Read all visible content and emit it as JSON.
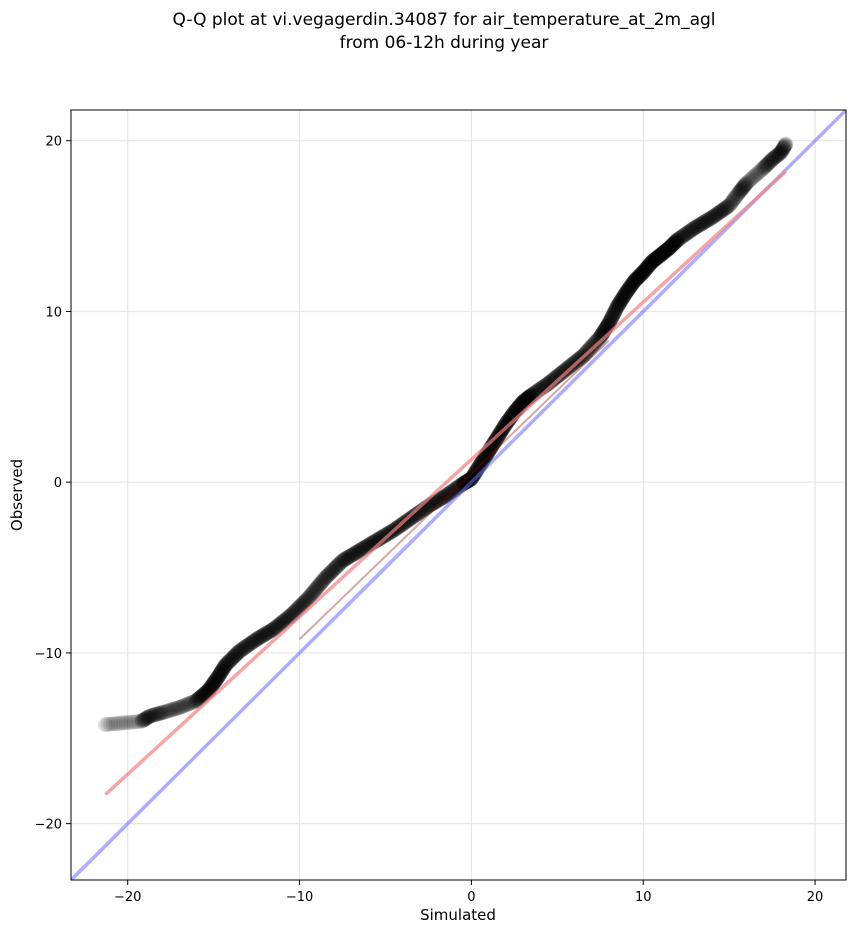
{
  "chart_data": {
    "type": "scatter",
    "title_line1": "Q-Q plot at vi.vegagerdin.34087 for air_temperature_at_2m_agl",
    "title_line2": "from 06-12h during year",
    "xlabel": "Simulated",
    "ylabel": "Observed",
    "xlim": [
      -23.3,
      21.8
    ],
    "ylim": [
      -23.3,
      21.8
    ],
    "grid": true,
    "xticks": [
      -20,
      -10,
      0,
      10,
      20
    ],
    "yticks": [
      -20,
      -10,
      0,
      10,
      20
    ],
    "xtick_labels": [
      "−20",
      "−10",
      "0",
      "10",
      "20"
    ],
    "ytick_labels": [
      "−20",
      "−10",
      "0",
      "10",
      "20"
    ],
    "colors": {
      "points": "#000000",
      "fit_line": "#f08080",
      "fit_line_dark": "#8b0000",
      "identity_line": "#6a6aff"
    },
    "quantile_curve": {
      "x": [
        -21.3,
        -19.2,
        -18.7,
        -18.0,
        -17.0,
        -16.0,
        -15.3,
        -14.8,
        -14.3,
        -13.5,
        -12.5,
        -11.5,
        -10.5,
        -9.5,
        -8.5,
        -7.5,
        -6.5,
        -5.5,
        -4.5,
        -3.5,
        -2.5,
        -1.5,
        -0.5,
        0.0,
        0.5,
        1.0,
        1.5,
        2.0,
        2.5,
        3.0,
        3.5,
        4.5,
        5.5,
        6.5,
        7.5,
        8.0,
        8.5,
        9.0,
        9.5,
        10.0,
        10.5,
        11.0,
        11.5,
        12.0,
        13.0,
        14.0,
        15.0,
        15.6,
        16.0,
        17.0,
        17.5,
        18.0,
        18.3
      ],
      "y": [
        -14.2,
        -14.0,
        -13.7,
        -13.5,
        -13.2,
        -12.8,
        -12.2,
        -11.5,
        -10.7,
        -9.9,
        -9.2,
        -8.6,
        -7.8,
        -6.8,
        -5.6,
        -4.6,
        -4.0,
        -3.4,
        -2.8,
        -2.1,
        -1.4,
        -0.8,
        -0.1,
        0.2,
        1.0,
        1.8,
        2.6,
        3.4,
        4.1,
        4.7,
        5.1,
        5.8,
        6.6,
        7.4,
        8.5,
        9.3,
        10.3,
        11.1,
        11.8,
        12.3,
        12.9,
        13.3,
        13.7,
        14.2,
        14.9,
        15.5,
        16.2,
        17.0,
        17.5,
        18.4,
        18.9,
        19.3,
        19.8
      ]
    },
    "fit_line": {
      "x": [
        -21.3,
        18.3
      ],
      "y": [
        -18.3,
        18.2
      ]
    },
    "identity_line": {
      "x": [
        -23.3,
        21.8
      ],
      "y": [
        -23.3,
        21.8
      ]
    }
  }
}
